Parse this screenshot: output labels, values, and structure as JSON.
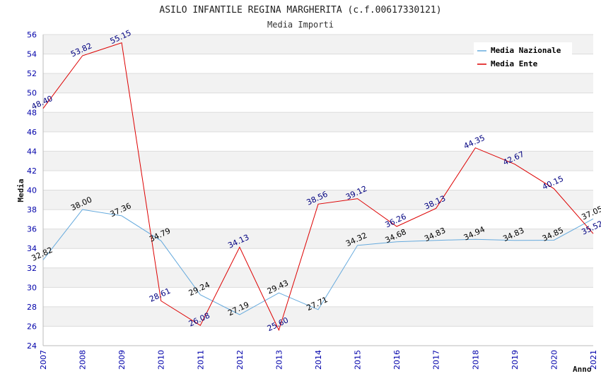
{
  "chart_data": {
    "type": "line",
    "title": "ASILO INFANTILE REGINA MARGHERITA (c.f.00617330121)",
    "subtitle": "Media Importi",
    "xlabel": "Anno",
    "ylabel": "Media",
    "ylim": [
      24,
      56
    ],
    "ytick_step": 2,
    "grid": true,
    "legend_position": "top-right",
    "categories": [
      "2007",
      "2008",
      "2009",
      "2010",
      "2011",
      "2012",
      "2013",
      "2014",
      "2015",
      "2016",
      "2017",
      "2018",
      "2019",
      "2020",
      "2021"
    ],
    "series": [
      {
        "name": "Media Nazionale",
        "color": "#66aadd",
        "label_color": "#000000",
        "values": [
          32.82,
          38.0,
          37.36,
          34.79,
          29.24,
          27.19,
          29.43,
          27.71,
          34.32,
          34.68,
          34.83,
          34.94,
          34.83,
          34.85,
          37.05
        ],
        "labels": [
          "32.82",
          "38.00",
          "37.36",
          "34.79",
          "29.24",
          "27.19",
          "29.43",
          "27.71",
          "34.32",
          "34.68",
          "34.83",
          "34.94",
          "34.83",
          "34.85",
          "37.05"
        ]
      },
      {
        "name": "Media Ente",
        "color": "#dd0000",
        "label_color": "#000080",
        "values": [
          48.4,
          53.82,
          55.15,
          28.61,
          26.08,
          34.13,
          25.6,
          38.56,
          39.12,
          36.26,
          38.13,
          44.35,
          42.67,
          40.15,
          35.52
        ],
        "labels": [
          "48.40",
          "53.82",
          "55.15",
          "28.61",
          "26.08",
          "34.13",
          "25.60",
          "38.56",
          "39.12",
          "36.26",
          "38.13",
          "44.35",
          "42.67",
          "40.15",
          "35.52"
        ]
      }
    ]
  }
}
